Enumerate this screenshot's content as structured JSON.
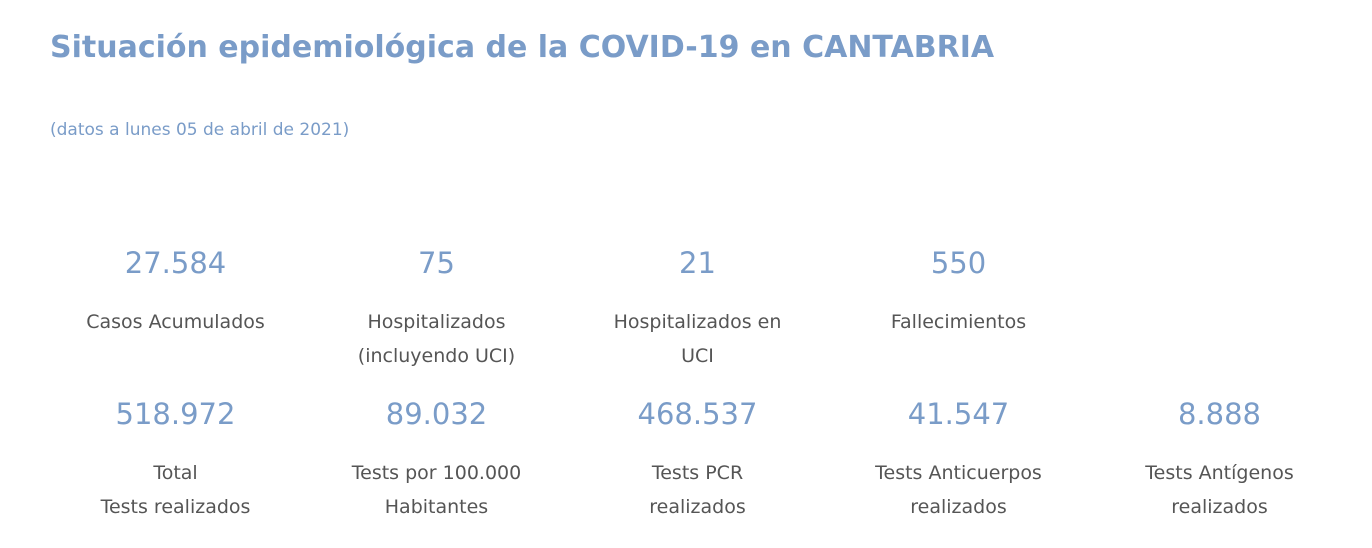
{
  "header": {
    "title": "Situación epidemiológica de la COVID-19 en CANTABRIA",
    "subtitle": "(datos a lunes 05 de abril de 2021)"
  },
  "stats_row1": [
    {
      "value": "27.584",
      "label": "Casos Acumulados"
    },
    {
      "value": "75",
      "label": "Hospitalizados\n(incluyendo UCI)"
    },
    {
      "value": "21",
      "label": "Hospitalizados en\nUCI"
    },
    {
      "value": "550",
      "label": "Fallecimientos"
    }
  ],
  "stats_row2": [
    {
      "value": "518.972",
      "label": "Total\nTests realizados"
    },
    {
      "value": "89.032",
      "label": "Tests por 100.000\nHabitantes"
    },
    {
      "value": "468.537",
      "label": "Tests PCR\nrealizados"
    },
    {
      "value": "41.547",
      "label": "Tests Anticuerpos\nrealizados"
    },
    {
      "value": "8.888",
      "label": "Tests Antígenos\nrealizados"
    }
  ],
  "colors": {
    "accent": "#7a9cc8",
    "label": "#555555"
  }
}
